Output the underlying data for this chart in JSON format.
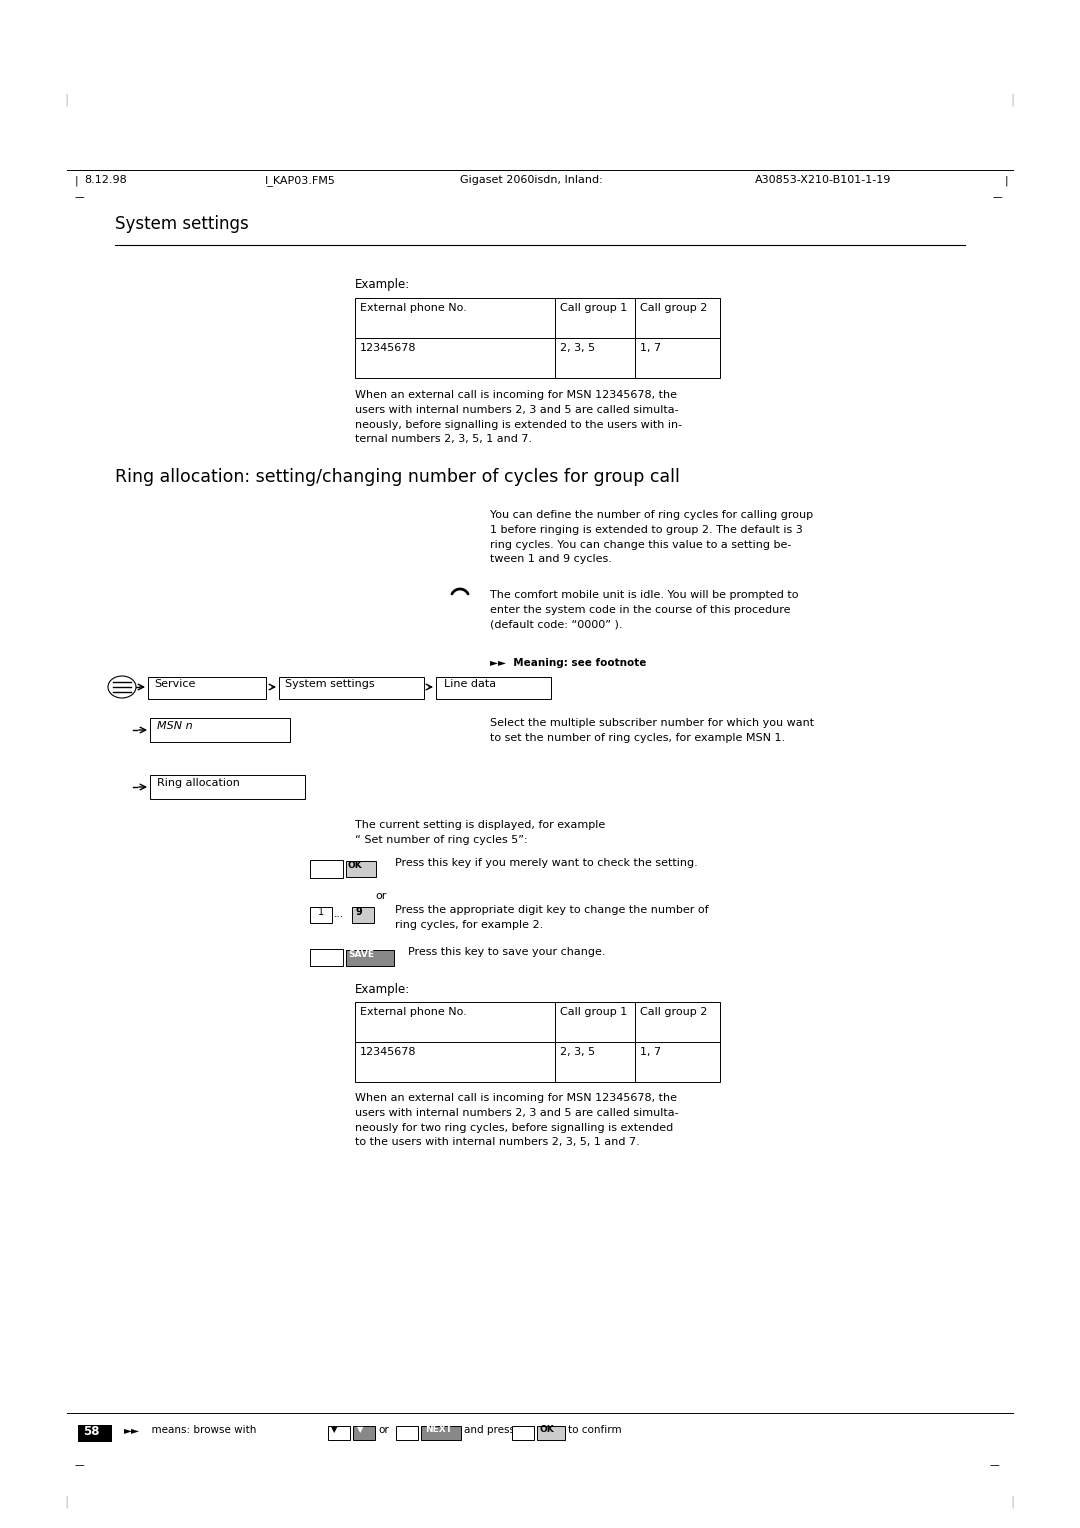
{
  "page_bg": "#ffffff",
  "header_date": "8.12.98",
  "header_file": "I_KAP03.FM5",
  "header_title": "Gigaset 2060isdn, Inland:",
  "header_ref": "A30853-X210-B101-1-19",
  "section_title": "System settings",
  "big_heading": "Ring allocation: setting/changing number of cycles for group call",
  "example_label": "Example:",
  "table1_headers": [
    "External phone No.",
    "Call group 1",
    "Call group 2"
  ],
  "table1_row": [
    "12345678",
    "2, 3, 5",
    "1, 7"
  ],
  "para1": "When an external call is incoming for MSN 12345678, the\nusers with internal numbers 2, 3 and 5 are called simulta-\nneously, before signalling is extended to the users with in-\nternal numbers 2, 3, 5, 1 and 7.",
  "handset_text": "The comfort mobile unit is idle. You will be prompted to\nenter the system code in the course of this procedure\n(default code: “0000” ).",
  "footnote_label": "►►  Meaning: see footnote",
  "nav_items": [
    "Service",
    "System settings",
    "Line data"
  ],
  "msn_label": "MSN n",
  "msn_desc": "Select the multiple subscriber number for which you want\nto set the number of ring cycles, for example MSN 1.",
  "ring_label": "Ring allocation",
  "ring_desc": "The current setting is displayed, for example\n“ Set number of ring cycles 5”:",
  "ok_desc": "Press this key if you merely want to check the setting.",
  "or_text": "or",
  "digit_desc": "Press the appropriate digit key to change the number of\nring cycles, for example 2.",
  "save_desc": "Press this key to save your change.",
  "example2_label": "Example:",
  "table2_headers": [
    "External phone No.",
    "Call group 1",
    "Call group 2"
  ],
  "table2_row": [
    "12345678",
    "2, 3, 5",
    "1, 7"
  ],
  "para2": "When an external call is incoming for MSN 12345678, the\nusers with internal numbers 2, 3 and 5 are called simulta-\nneously for two ring cycles, before signalling is extended\nto the users with internal numbers 2, 3, 5, 1 and 7.",
  "footer_page": "58",
  "font_color": "#000000"
}
